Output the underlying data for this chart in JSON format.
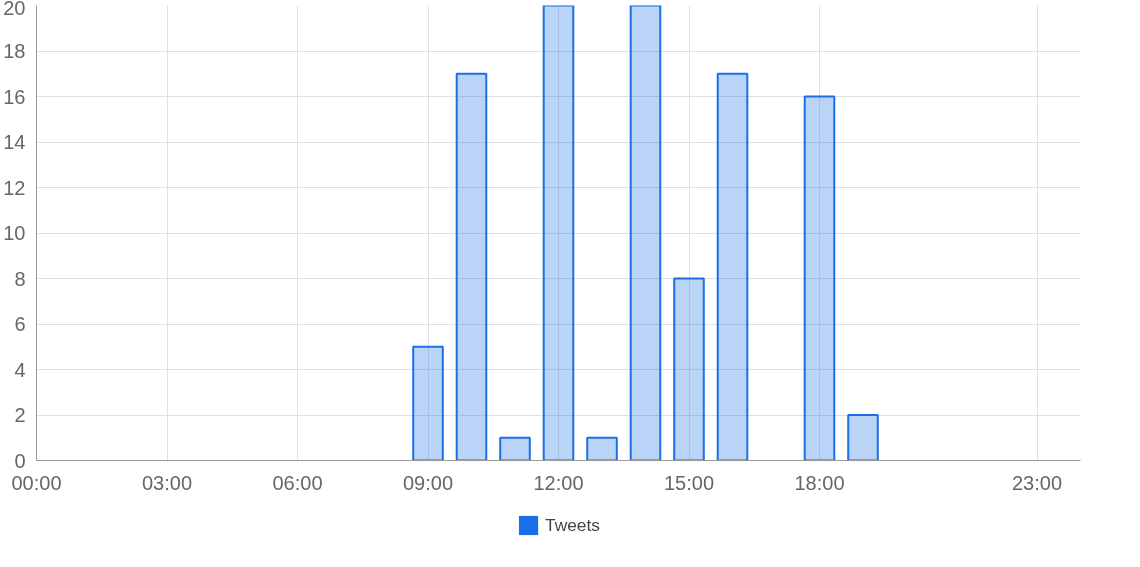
{
  "chart_data": {
    "type": "bar",
    "x": [
      9,
      10,
      11,
      12,
      13,
      14,
      15,
      16,
      17,
      18,
      19
    ],
    "series": [
      {
        "name": "Tweets",
        "color": "#1a6fe8",
        "values": [
          5,
          17,
          1,
          20,
          1,
          20,
          8,
          17,
          null,
          16,
          2
        ]
      }
    ],
    "xlim": [
      0,
      24
    ],
    "xticks": [
      {
        "value": 0,
        "label": "00:00"
      },
      {
        "value": 3,
        "label": "03:00"
      },
      {
        "value": 6,
        "label": "06:00"
      },
      {
        "value": 9,
        "label": "09:00"
      },
      {
        "value": 12,
        "label": "12:00"
      },
      {
        "value": 15,
        "label": "15:00"
      },
      {
        "value": 18,
        "label": "18:00"
      },
      {
        "value": 23,
        "label": "23:00"
      }
    ],
    "ylim": [
      0,
      20
    ],
    "yticks": [
      0,
      2,
      4,
      6,
      8,
      10,
      12,
      14,
      16,
      18,
      20
    ],
    "grid": true,
    "legend": "bottom"
  }
}
